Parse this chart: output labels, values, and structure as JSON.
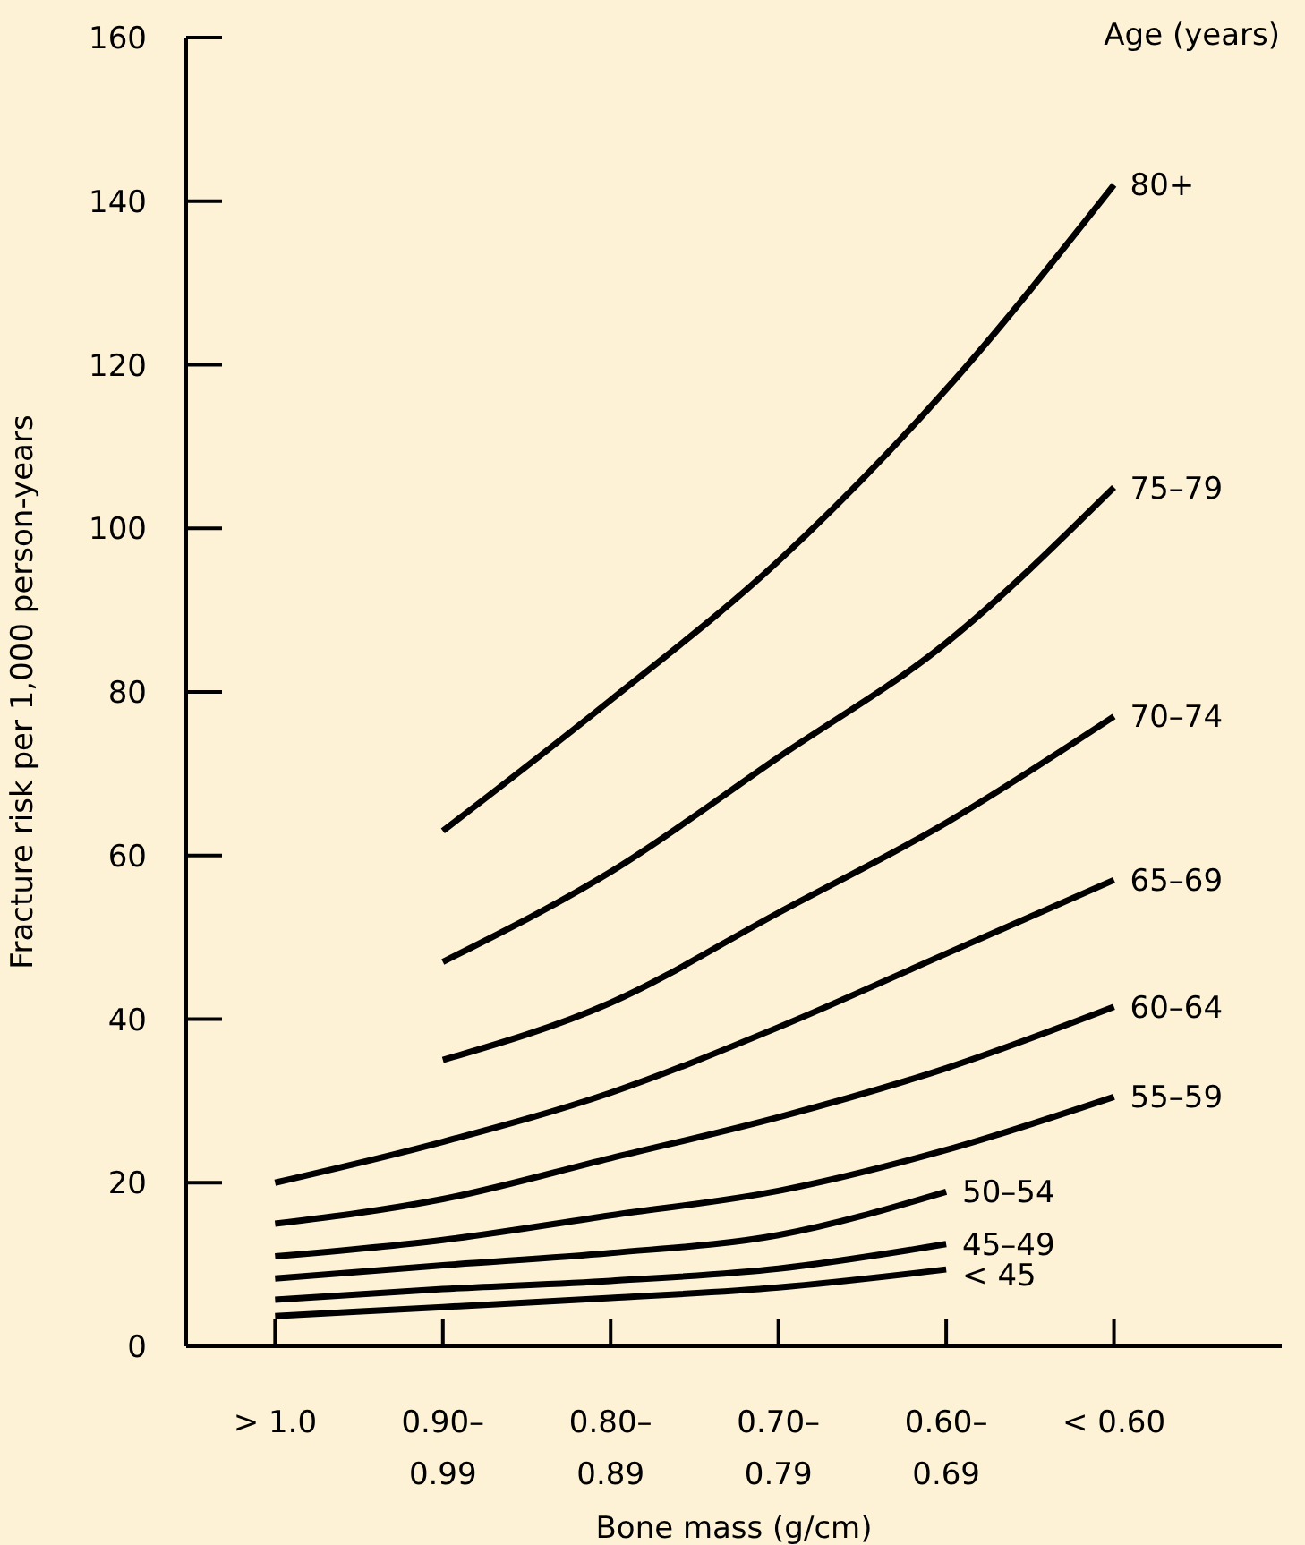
{
  "chart_data": {
    "type": "line",
    "xlabel": "Bone mass (g/cm)",
    "ylabel": "Fracture risk per 1,000 person-years",
    "legend_title": "Age (years)",
    "categories": [
      "> 1.0",
      "0.90–\n0.99",
      "0.80–\n0.89",
      "0.70–\n0.79",
      "0.60–\n0.69",
      "< 0.60"
    ],
    "ylim": [
      0,
      160
    ],
    "yticks": [
      0,
      20,
      40,
      60,
      80,
      100,
      120,
      140,
      160
    ],
    "grid": false,
    "legend": false,
    "series": [
      {
        "name": "80+",
        "color": "#000000",
        "values": [
          null,
          63,
          79,
          96,
          117,
          142
        ]
      },
      {
        "name": "75–79",
        "color": "#000000",
        "values": [
          null,
          47,
          58,
          72,
          86,
          105
        ]
      },
      {
        "name": "70–74",
        "color": "#000000",
        "values": [
          null,
          35,
          42,
          53,
          64,
          77
        ]
      },
      {
        "name": "65–69",
        "color": "#000000",
        "values": [
          20,
          25,
          31,
          39,
          48,
          57
        ]
      },
      {
        "name": "60–64",
        "color": "#000000",
        "values": [
          15,
          18,
          23,
          28,
          34,
          41.5
        ]
      },
      {
        "name": "55–59",
        "color": "#000000",
        "values": [
          11,
          13,
          16,
          19,
          24,
          30.5
        ]
      },
      {
        "name": "50–54",
        "color": "#000000",
        "values": [
          8.3,
          9.9,
          11.4,
          13.6,
          18.9,
          null
        ]
      },
      {
        "name": "45–49",
        "color": "#000000",
        "values": [
          5.7,
          7,
          8,
          9.5,
          12.5,
          null
        ]
      },
      {
        "name": "< 45",
        "color": "#000000",
        "values": [
          3.7,
          4.8,
          5.9,
          7.2,
          9.4,
          null
        ]
      }
    ]
  }
}
